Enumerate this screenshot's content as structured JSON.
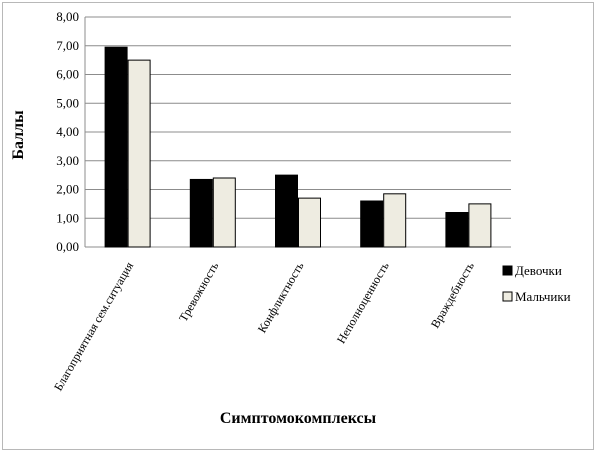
{
  "chart_data": {
    "type": "bar",
    "title": "",
    "xlabel": "Симптомокомплексы",
    "ylabel": "Баллы",
    "ylim": [
      0,
      8
    ],
    "yticks": [
      "0,00",
      "1,00",
      "2,00",
      "3,00",
      "4,00",
      "5,00",
      "6,00",
      "7,00",
      "8,00"
    ],
    "grid": true,
    "legend_position": "right",
    "categories": [
      "Благоприятная сем.ситуация",
      "Тревожность",
      "Конфликтность",
      "Неполноценность",
      "Враждебность"
    ],
    "series": [
      {
        "name": "Девочки",
        "values": [
          6.95,
          2.35,
          2.5,
          1.6,
          1.2
        ],
        "color": "#000000"
      },
      {
        "name": "Мальчики",
        "values": [
          6.5,
          2.4,
          1.7,
          1.85,
          1.5
        ],
        "color": "#eeece1"
      }
    ]
  }
}
